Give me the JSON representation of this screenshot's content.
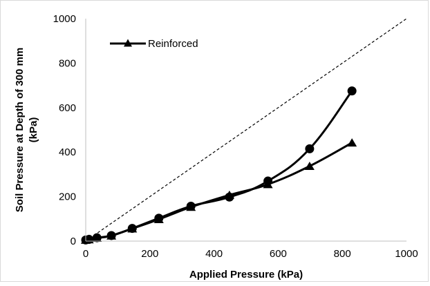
{
  "chart_data": {
    "type": "line",
    "title": "",
    "xlabel": "Applied Pressure (kPa)",
    "ylabel_lines": [
      "Soil Pressure at Depth of 300 mm",
      "(kPa)"
    ],
    "xlim": [
      0,
      1000
    ],
    "ylim": [
      0,
      1000
    ],
    "xticks": [
      "0",
      "200",
      "400",
      "600",
      "800",
      "1000"
    ],
    "yticks": [
      "0",
      "200",
      "400",
      "600",
      "800",
      "1000"
    ],
    "grid": false,
    "legend": {
      "position": "top-left",
      "entries": [
        "Reinforced"
      ]
    },
    "series": [
      {
        "marker": "circle",
        "x": [
          0,
          10,
          35,
          80,
          145,
          228,
          328,
          448,
          568,
          698,
          830
        ],
        "y": [
          5,
          8,
          15,
          25,
          57,
          103,
          157,
          198,
          270,
          415,
          675
        ]
      },
      {
        "name": "Reinforced",
        "marker": "triangle",
        "x": [
          0,
          10,
          35,
          80,
          145,
          228,
          328,
          448,
          568,
          698,
          830
        ],
        "y": [
          5,
          7,
          14,
          24,
          56,
          98,
          153,
          207,
          255,
          337,
          442
        ]
      },
      {
        "marker": "none",
        "line_style": "dashed",
        "x": [
          0,
          1000
        ],
        "y": [
          0,
          1000
        ]
      }
    ]
  }
}
